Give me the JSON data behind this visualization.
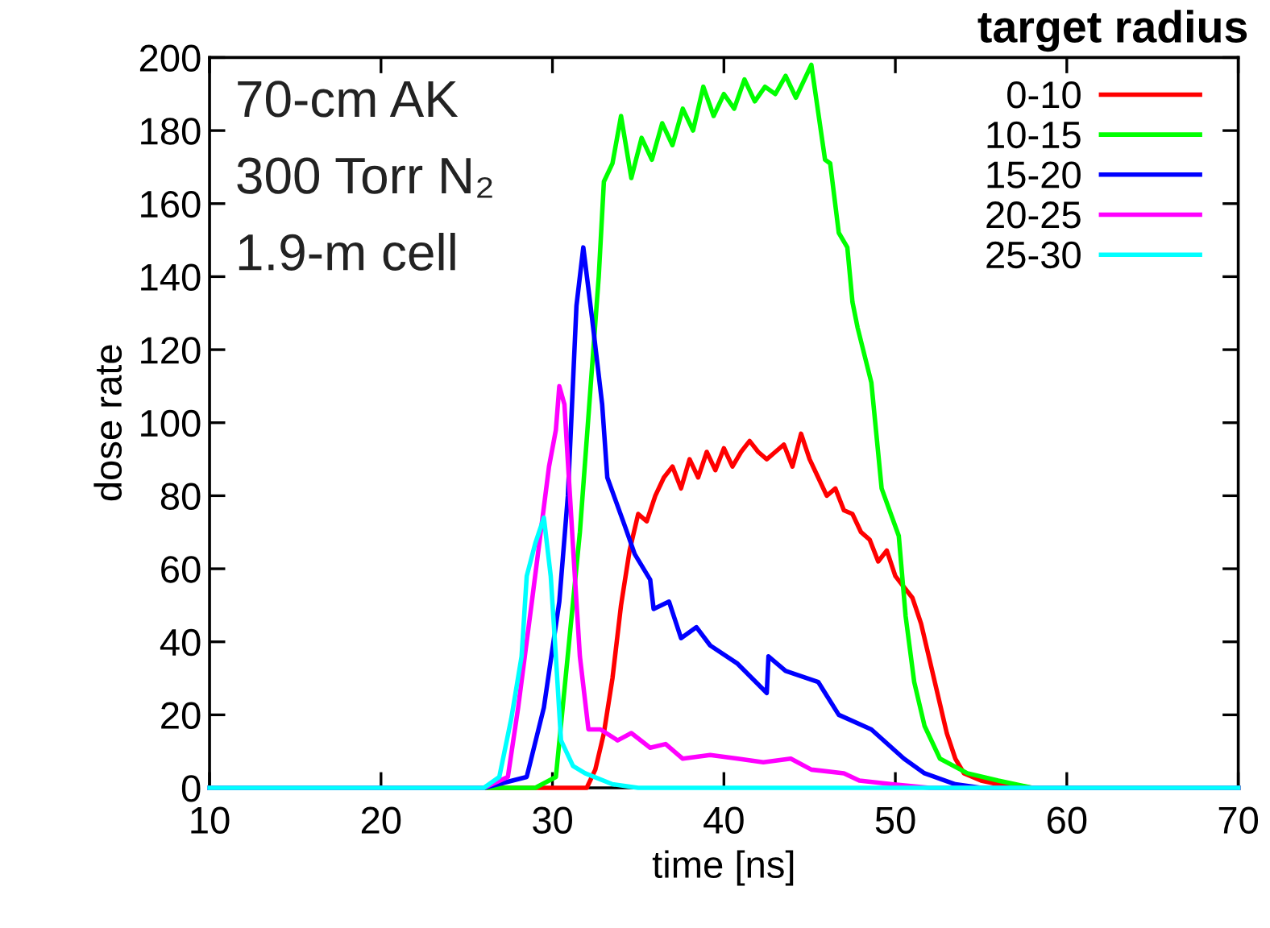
{
  "chart_data": {
    "type": "line",
    "xlabel": "time [ns]",
    "ylabel": "dose rate",
    "legend_title": "target radius",
    "annotations": [
      "70-cm AK",
      "300 Torr N₂",
      "1.9-m cell"
    ],
    "xlim": [
      10,
      70
    ],
    "xticks": [
      10,
      20,
      30,
      40,
      50,
      60,
      70
    ],
    "ylim": [
      0,
      200
    ],
    "yticks": [
      0,
      20,
      40,
      60,
      80,
      100,
      120,
      140,
      160,
      180,
      200
    ],
    "grid": false,
    "legend": "top right",
    "marker": "none",
    "line_style": "solid",
    "series": [
      {
        "name": "0-10",
        "color": "#ff0000",
        "x": [
          10,
          32,
          32.5,
          33,
          33.5,
          34,
          34.5,
          35,
          35.5,
          36,
          36.5,
          37,
          37.5,
          38,
          38.5,
          39,
          39.5,
          40,
          40.5,
          41,
          41.5,
          42,
          42.5,
          43,
          43.5,
          44,
          44.5,
          45,
          45.5,
          46,
          46.5,
          47,
          47.5,
          48,
          48.5,
          49,
          49.5,
          50,
          50.5,
          51,
          51.5,
          52,
          52.5,
          53,
          53.5,
          54,
          55,
          56,
          58,
          70
        ],
        "values": [
          0,
          0,
          5,
          15,
          30,
          50,
          65,
          75,
          73,
          80,
          85,
          88,
          82,
          90,
          85,
          92,
          87,
          93,
          88,
          92,
          95,
          92,
          90,
          92,
          94,
          88,
          97,
          90,
          85,
          80,
          82,
          76,
          75,
          70,
          68,
          62,
          65,
          58,
          55,
          52,
          45,
          35,
          25,
          15,
          8,
          4,
          2,
          1,
          0,
          0
        ]
      },
      {
        "name": "10-15",
        "color": "#00ff00",
        "x": [
          10,
          29,
          30.2,
          31.6,
          32.7,
          33.0,
          33.5,
          34,
          34.6,
          35.2,
          35.8,
          36.4,
          37,
          37.6,
          38.2,
          38.8,
          39.4,
          40,
          40.6,
          41.2,
          41.8,
          42.4,
          43,
          43.6,
          44.2,
          44.6,
          45.1,
          45.9,
          46.2,
          46.7,
          47.2,
          47.5,
          47.8,
          48.6,
          49.2,
          50.2,
          50.6,
          51.1,
          51.7,
          52.6,
          54.2,
          56,
          58,
          70
        ],
        "values": [
          0,
          0,
          3,
          70,
          140,
          166,
          171,
          184,
          167,
          178,
          172,
          182,
          176,
          186,
          180,
          192,
          184,
          190,
          186,
          194,
          188,
          192,
          190,
          195,
          189,
          193,
          198,
          172,
          171,
          152,
          148,
          133,
          126,
          111,
          82,
          69,
          47,
          29,
          17,
          8,
          4,
          2,
          0,
          0
        ]
      },
      {
        "name": "15-20",
        "color": "#0000ff",
        "x": [
          10,
          26,
          28.5,
          29.5,
          30.4,
          30.9,
          31.4,
          31.8,
          32.3,
          32.9,
          33.2,
          34.2,
          34.8,
          35.7,
          35.9,
          36.8,
          37.5,
          38.4,
          39.2,
          40.8,
          42.5,
          42.6,
          43.6,
          45.5,
          46.7,
          48.6,
          50.5,
          51.7,
          53.5,
          55,
          70
        ],
        "values": [
          0,
          0,
          3,
          22,
          51,
          80,
          132,
          148,
          129,
          105,
          85,
          72,
          64,
          57,
          49,
          51,
          41,
          44,
          39,
          34,
          26,
          36,
          32,
          29,
          20,
          16,
          8,
          4,
          1,
          0,
          0
        ]
      },
      {
        "name": "20-25",
        "color": "#ff00ff",
        "x": [
          10,
          26,
          27.4,
          28,
          28.8,
          29.8,
          30.2,
          30.4,
          30.7,
          31.2,
          31.6,
          32.1,
          32.8,
          33.8,
          34.6,
          35.7,
          36.6,
          37.6,
          39.2,
          40.8,
          42.3,
          43.9,
          45.1,
          47,
          47.9,
          49.8,
          52,
          70
        ],
        "values": [
          0,
          0,
          3,
          22,
          51,
          88,
          98,
          110,
          105,
          66,
          36,
          16,
          16,
          13,
          15,
          11,
          12,
          8,
          9,
          8,
          7,
          8,
          5,
          4,
          2,
          1,
          0,
          0
        ]
      },
      {
        "name": "25-30",
        "color": "#00ffff",
        "x": [
          10,
          26,
          26.9,
          27.6,
          28.2,
          28.5,
          29.0,
          29.5,
          29.9,
          30.2,
          30.5,
          31.2,
          31.9,
          33.5,
          35,
          70
        ],
        "values": [
          0,
          0,
          3,
          19,
          36,
          58,
          67,
          74,
          58,
          36,
          13,
          6,
          4,
          1,
          0,
          0
        ]
      }
    ]
  }
}
